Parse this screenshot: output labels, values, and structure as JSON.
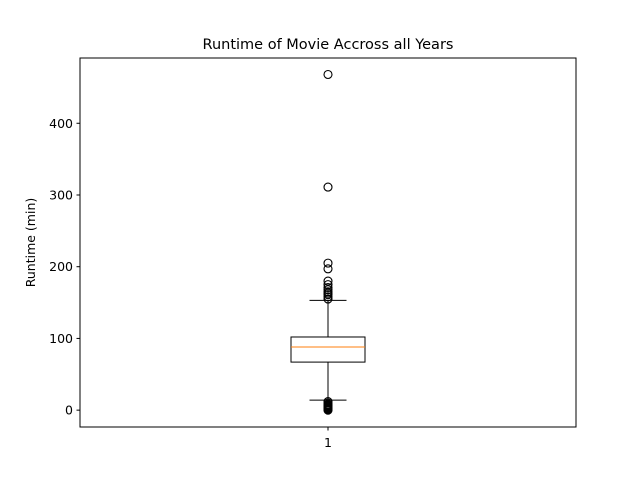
{
  "chart_data": {
    "type": "box",
    "title": "Runtime of Movie Accross all Years",
    "xlabel": "",
    "ylabel": "Runtime (min)",
    "ylim": [
      -23.5,
      491
    ],
    "yticks": [
      0,
      100,
      200,
      300,
      400
    ],
    "categories": [
      "1"
    ],
    "grid": false,
    "series": [
      {
        "whisker_low": 14,
        "q1": 67,
        "median": 88,
        "q3": 102,
        "whisker_high": 153,
        "outliers_high": [
          155,
          158,
          161,
          163,
          165,
          168,
          171,
          175,
          180,
          197,
          205,
          311,
          468
        ],
        "outliers_low": [
          0,
          1,
          2,
          3,
          4,
          5,
          6,
          7,
          8,
          10,
          12
        ]
      }
    ],
    "colors": {
      "box": "#000000",
      "median": "#ff7f0e",
      "outlier": "#000000"
    }
  }
}
